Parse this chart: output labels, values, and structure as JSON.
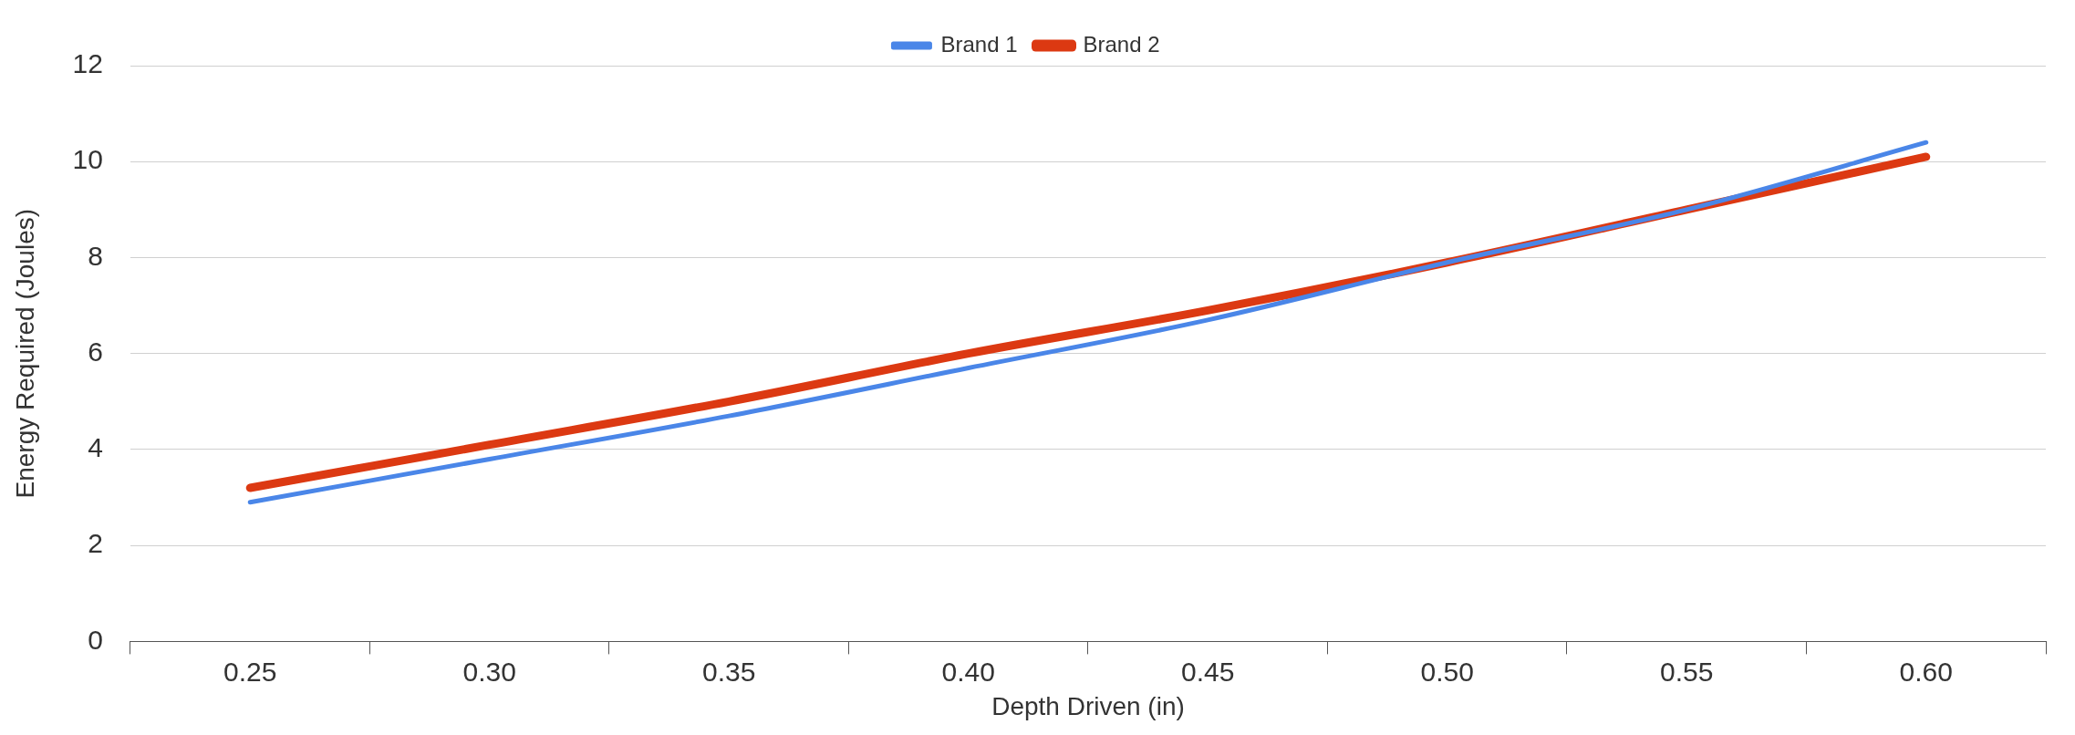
{
  "chart_data": {
    "type": "line",
    "xlabel": "Depth Driven (in)",
    "ylabel": "Energy Required (Joules)",
    "categories": [
      "0.25",
      "0.30",
      "0.35",
      "0.40",
      "0.45",
      "0.50",
      "0.55",
      "0.60"
    ],
    "series": [
      {
        "name": "Brand 1",
        "color": "#4a86e8",
        "values": [
          2.9,
          3.8,
          4.7,
          5.7,
          6.7,
          7.9,
          9.0,
          10.4
        ]
      },
      {
        "name": "Brand 2",
        "color": "#dc3912",
        "values": [
          3.2,
          4.1,
          5.0,
          6.0,
          6.9,
          7.9,
          9.0,
          10.1
        ]
      }
    ],
    "ylim": [
      0,
      12
    ],
    "yticks": [
      0,
      2,
      4,
      6,
      8,
      10,
      12
    ],
    "grid": "y",
    "legend": "top",
    "marker": "none",
    "line_style": "solid"
  }
}
